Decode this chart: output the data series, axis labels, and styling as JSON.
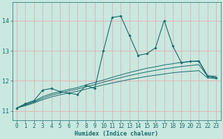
{
  "xlabel": "Humidex (Indice chaleur)",
  "xlim": [
    -0.5,
    23.5
  ],
  "ylim": [
    10.7,
    14.6
  ],
  "yticks": [
    11,
    12,
    13,
    14
  ],
  "xticks": [
    0,
    1,
    2,
    3,
    4,
    5,
    6,
    7,
    8,
    9,
    10,
    11,
    12,
    13,
    14,
    15,
    16,
    17,
    18,
    19,
    20,
    21,
    22,
    23
  ],
  "bg_color": "#c8e8e0",
  "line_color": "#1a6b6b",
  "grid_color": "#f0a0a0",
  "main_line_x": [
    0,
    1,
    2,
    3,
    4,
    5,
    6,
    7,
    8,
    9,
    10,
    11,
    12,
    13,
    14,
    15,
    16,
    17,
    18,
    19,
    20,
    21,
    22,
    23
  ],
  "main_line_y": [
    11.1,
    11.25,
    11.35,
    11.7,
    11.75,
    11.65,
    11.6,
    11.55,
    11.85,
    11.75,
    13.0,
    14.1,
    14.15,
    13.5,
    12.85,
    12.9,
    13.1,
    14.0,
    13.15,
    12.6,
    12.65,
    12.65,
    12.15,
    12.1
  ],
  "smooth_line1_y": [
    11.1,
    11.18,
    11.27,
    11.38,
    11.47,
    11.54,
    11.6,
    11.66,
    11.73,
    11.8,
    11.87,
    11.93,
    11.99,
    12.05,
    12.1,
    12.15,
    12.19,
    12.23,
    12.27,
    12.3,
    12.32,
    12.34,
    12.1,
    12.08
  ],
  "smooth_line2_y": [
    11.1,
    11.2,
    11.3,
    11.43,
    11.53,
    11.6,
    11.67,
    11.73,
    11.81,
    11.88,
    11.96,
    12.04,
    12.11,
    12.18,
    12.24,
    12.3,
    12.35,
    12.4,
    12.44,
    12.48,
    12.51,
    12.54,
    12.15,
    12.12
  ],
  "smooth_line3_y": [
    11.1,
    11.22,
    11.33,
    11.48,
    11.58,
    11.65,
    11.72,
    11.78,
    11.87,
    11.95,
    12.03,
    12.12,
    12.2,
    12.28,
    12.35,
    12.42,
    12.47,
    12.53,
    12.57,
    12.62,
    12.64,
    12.67,
    12.18,
    12.15
  ]
}
